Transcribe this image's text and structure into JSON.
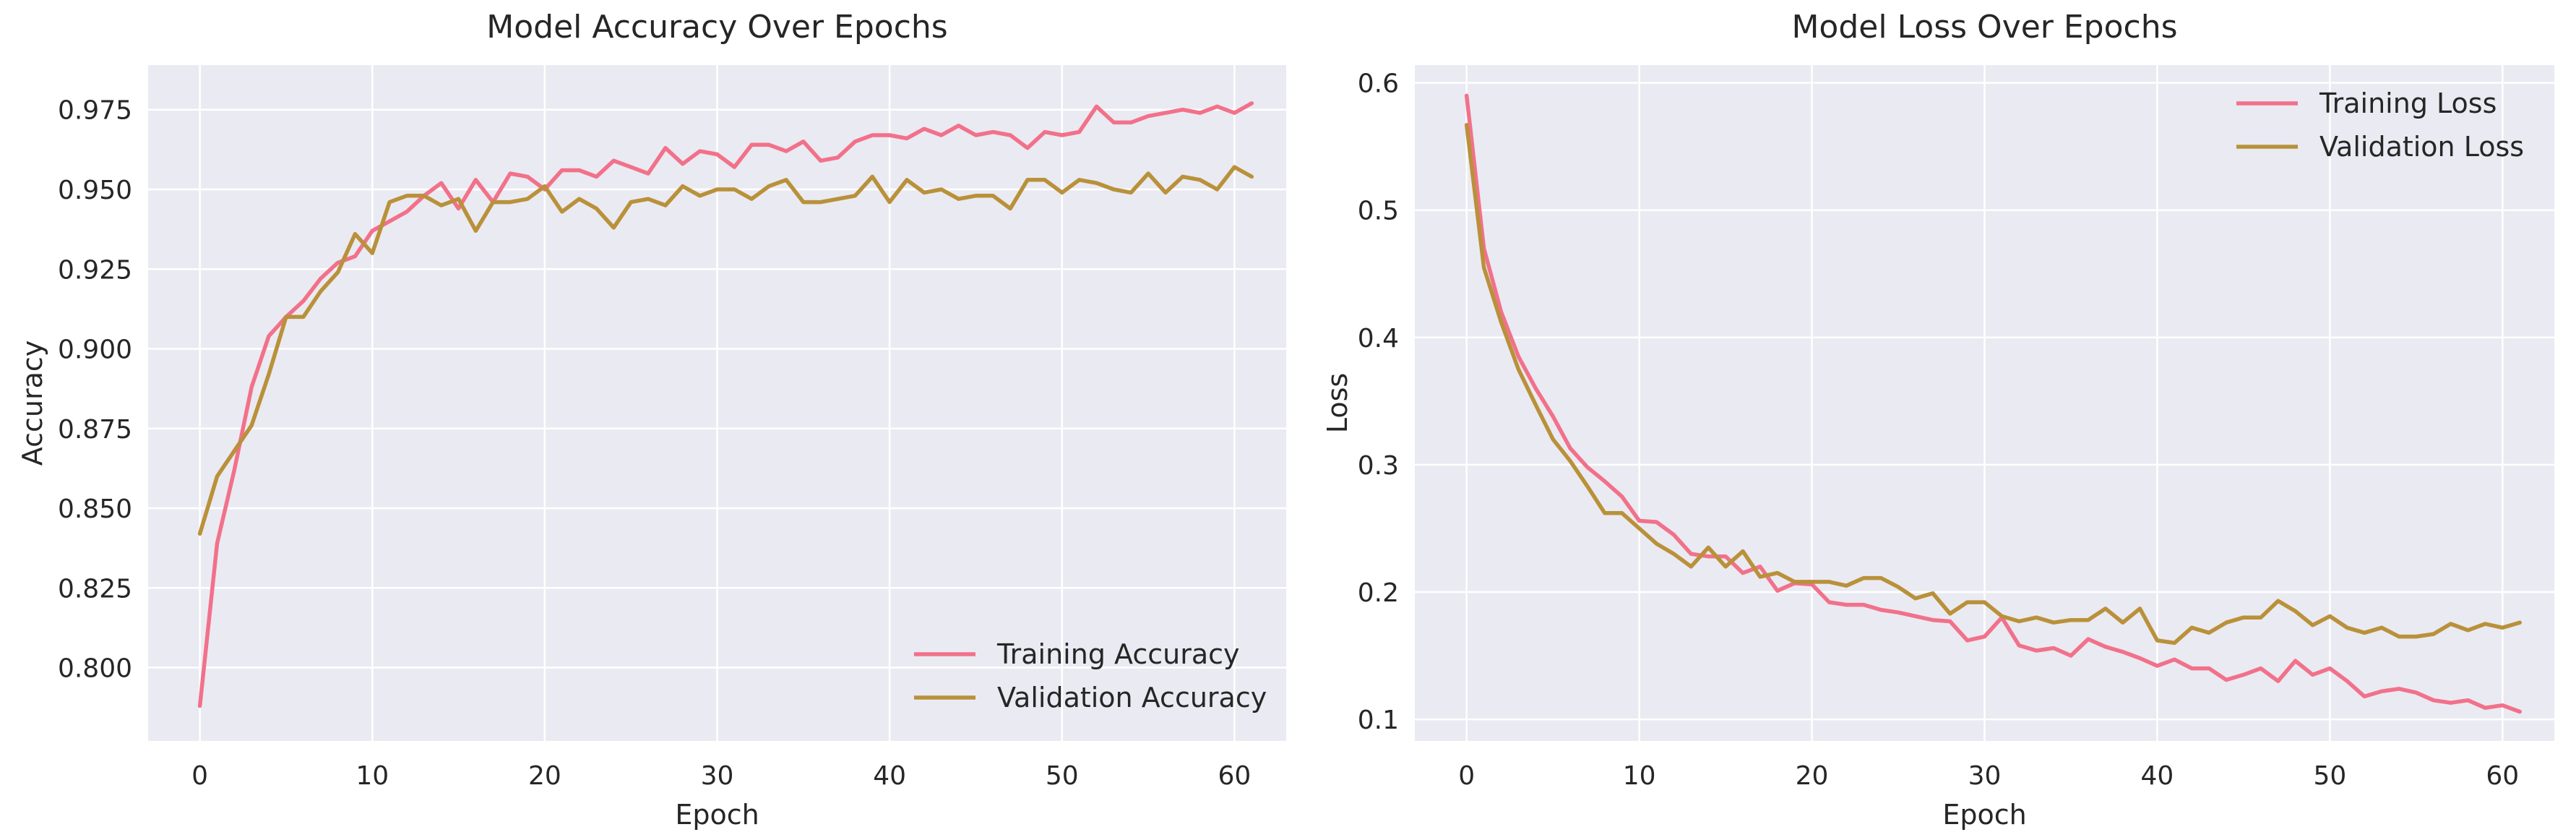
{
  "chart_data": [
    {
      "type": "line",
      "title": "Model Accuracy Over Epochs",
      "xlabel": "Epoch",
      "ylabel": "Accuracy",
      "xlim": [
        -3,
        63
      ],
      "ylim": [
        0.777,
        0.989
      ],
      "xticks": [
        0,
        10,
        20,
        30,
        40,
        50,
        60
      ],
      "yticks": [
        0.8,
        0.825,
        0.85,
        0.875,
        0.9,
        0.925,
        0.95,
        0.975
      ],
      "ytick_labels": [
        "0.800",
        "0.825",
        "0.850",
        "0.875",
        "0.900",
        "0.925",
        "0.950",
        "0.975"
      ],
      "grid": true,
      "legend_position": "lower-right",
      "series": [
        {
          "name": "Training Accuracy",
          "color": "#f2718a",
          "values": [
            0.788,
            0.839,
            0.862,
            0.888,
            0.904,
            0.91,
            0.915,
            0.922,
            0.927,
            0.929,
            0.937,
            0.94,
            0.943,
            0.948,
            0.952,
            0.944,
            0.953,
            0.946,
            0.955,
            0.954,
            0.95,
            0.956,
            0.956,
            0.954,
            0.959,
            0.957,
            0.955,
            0.963,
            0.958,
            0.962,
            0.961,
            0.957,
            0.964,
            0.964,
            0.962,
            0.965,
            0.959,
            0.96,
            0.965,
            0.967,
            0.967,
            0.966,
            0.969,
            0.967,
            0.97,
            0.967,
            0.968,
            0.967,
            0.963,
            0.968,
            0.967,
            0.968,
            0.976,
            0.971,
            0.971,
            0.973,
            0.974,
            0.975,
            0.974,
            0.976,
            0.974,
            0.977
          ]
        },
        {
          "name": "Validation Accuracy",
          "color": "#b9913a",
          "values": [
            0.842,
            0.86,
            0.868,
            0.876,
            0.892,
            0.91,
            0.91,
            0.918,
            0.924,
            0.936,
            0.93,
            0.946,
            0.948,
            0.948,
            0.945,
            0.947,
            0.937,
            0.946,
            0.946,
            0.947,
            0.951,
            0.943,
            0.947,
            0.944,
            0.938,
            0.946,
            0.947,
            0.945,
            0.951,
            0.948,
            0.95,
            0.95,
            0.947,
            0.951,
            0.953,
            0.946,
            0.946,
            0.947,
            0.948,
            0.954,
            0.946,
            0.953,
            0.949,
            0.95,
            0.947,
            0.948,
            0.948,
            0.944,
            0.953,
            0.953,
            0.949,
            0.953,
            0.952,
            0.95,
            0.949,
            0.955,
            0.949,
            0.954,
            0.953,
            0.95,
            0.957,
            0.954
          ]
        }
      ]
    },
    {
      "type": "line",
      "title": "Model Loss Over Epochs",
      "xlabel": "Epoch",
      "ylabel": "Loss",
      "xlim": [
        -3,
        63
      ],
      "ylim": [
        0.083,
        0.614
      ],
      "xticks": [
        0,
        10,
        20,
        30,
        40,
        50,
        60
      ],
      "yticks": [
        0.1,
        0.2,
        0.3,
        0.4,
        0.5,
        0.6
      ],
      "ytick_labels": [
        "0.1",
        "0.2",
        "0.3",
        "0.4",
        "0.5",
        "0.6"
      ],
      "grid": true,
      "legend_position": "upper-right",
      "series": [
        {
          "name": "Training Loss",
          "color": "#f2718a",
          "values": [
            0.59,
            0.47,
            0.42,
            0.385,
            0.36,
            0.338,
            0.313,
            0.298,
            0.287,
            0.275,
            0.256,
            0.255,
            0.245,
            0.23,
            0.228,
            0.228,
            0.215,
            0.22,
            0.201,
            0.207,
            0.206,
            0.192,
            0.19,
            0.19,
            0.186,
            0.184,
            0.181,
            0.178,
            0.177,
            0.162,
            0.165,
            0.18,
            0.158,
            0.154,
            0.156,
            0.15,
            0.163,
            0.157,
            0.153,
            0.148,
            0.142,
            0.147,
            0.14,
            0.14,
            0.131,
            0.135,
            0.14,
            0.13,
            0.146,
            0.135,
            0.14,
            0.13,
            0.118,
            0.122,
            0.124,
            0.121,
            0.115,
            0.113,
            0.115,
            0.109,
            0.111,
            0.106
          ]
        },
        {
          "name": "Validation Loss",
          "color": "#b9913a",
          "values": [
            0.567,
            0.455,
            0.412,
            0.375,
            0.347,
            0.32,
            0.303,
            0.283,
            0.262,
            0.262,
            0.25,
            0.238,
            0.23,
            0.22,
            0.235,
            0.22,
            0.232,
            0.212,
            0.215,
            0.208,
            0.208,
            0.208,
            0.205,
            0.211,
            0.211,
            0.204,
            0.195,
            0.199,
            0.183,
            0.192,
            0.192,
            0.181,
            0.177,
            0.18,
            0.176,
            0.178,
            0.178,
            0.187,
            0.176,
            0.187,
            0.162,
            0.16,
            0.172,
            0.168,
            0.176,
            0.18,
            0.18,
            0.193,
            0.185,
            0.174,
            0.181,
            0.172,
            0.168,
            0.172,
            0.165,
            0.165,
            0.167,
            0.175,
            0.17,
            0.175,
            0.172,
            0.176
          ]
        }
      ]
    }
  ]
}
